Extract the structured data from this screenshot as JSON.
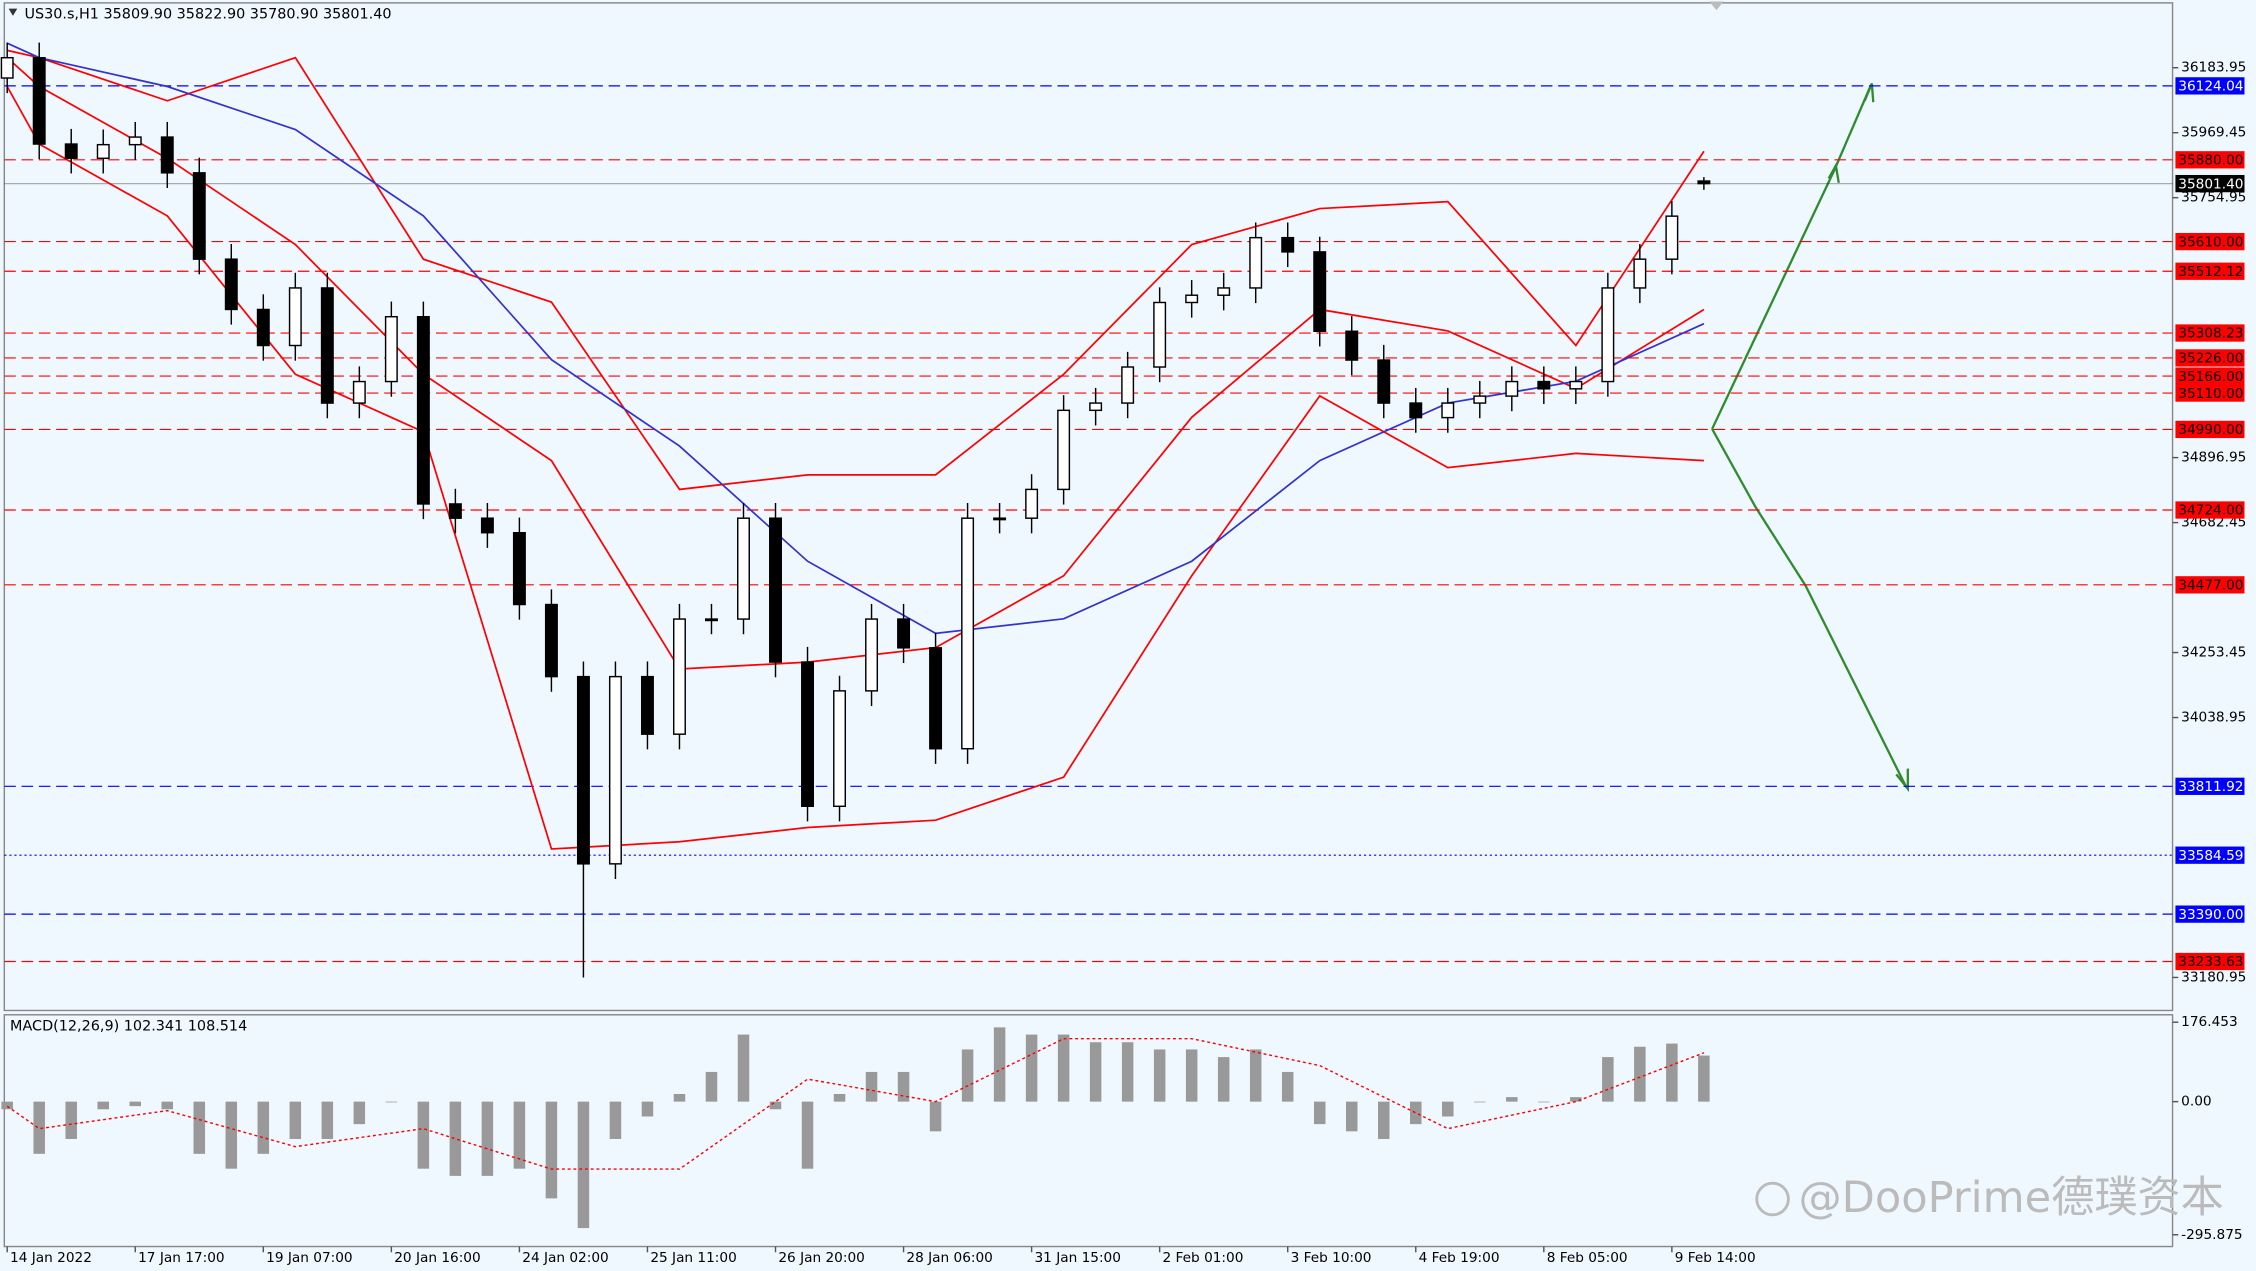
{
  "chart_data": [
    {
      "type": "candlestick",
      "title": "US30.s,H1 35809.90 35822.90 35780.90 35801.40",
      "color": "#000000",
      "xlim": [
        -0.09,
        67.64
      ],
      "xticks": [
        {
          "value": 0,
          "label": "14 Jan 2022"
        },
        {
          "value": 4,
          "label": "17 Jan 17:00"
        },
        {
          "value": 8,
          "label": "19 Jan 07:00"
        },
        {
          "value": 12,
          "label": "20 Jan 16:00"
        },
        {
          "value": 16,
          "label": "24 Jan 02:00"
        },
        {
          "value": 20,
          "label": "25 Jan 11:00"
        },
        {
          "value": 24,
          "label": "26 Jan 20:00"
        },
        {
          "value": 28,
          "label": "28 Jan 06:00"
        },
        {
          "value": 32,
          "label": "31 Jan 15:00"
        },
        {
          "value": 36,
          "label": "2 Feb 01:00"
        },
        {
          "value": 40,
          "label": "3 Feb 10:00"
        },
        {
          "value": 44,
          "label": "4 Feb 19:00"
        },
        {
          "value": 48,
          "label": "8 Feb 05:00"
        },
        {
          "value": 52,
          "label": "9 Feb 14:00"
        }
      ],
      "ylim": [
        33072,
        36398
      ],
      "yticks": [
        36183.95,
        35969.45,
        35754.95,
        34896.95,
        34682.45,
        34253.45,
        34038.95,
        33180.95
      ],
      "x": [
        0,
        1,
        2,
        3,
        4,
        5,
        6,
        7,
        8,
        9,
        10,
        11,
        12,
        13,
        14,
        15,
        16,
        17,
        18,
        19,
        20,
        21,
        22,
        23,
        24,
        25,
        26,
        27,
        28,
        29,
        30,
        31,
        32,
        33,
        34,
        35,
        36,
        37,
        38,
        39,
        40,
        41,
        42,
        43,
        44,
        45,
        46,
        47,
        48,
        49,
        50,
        51,
        52,
        53
      ],
      "open": [
        36150,
        36217,
        35932,
        35885,
        35930,
        35955,
        35837,
        35552,
        35386,
        35267,
        35457,
        35077,
        35148,
        35362,
        34744,
        34697,
        34649,
        34412,
        34174,
        33556,
        34174,
        33984,
        34364,
        34364,
        34697,
        34222,
        33746,
        34127,
        34364,
        34269,
        33936,
        34697,
        34697,
        34792,
        35053,
        35077,
        35196,
        35409,
        35433,
        35457,
        35623,
        35576,
        35314,
        35219,
        35077,
        35029,
        35077,
        35100,
        35148,
        35124,
        35148,
        35457,
        35552,
        35809.9
      ],
      "high": [
        36267,
        36267,
        35982,
        35980,
        36005,
        36005,
        35887,
        35602,
        35436,
        35507,
        35507,
        35198,
        35412,
        35412,
        34794,
        34747,
        34699,
        34462,
        34224,
        34224,
        34224,
        34414,
        34414,
        34747,
        34747,
        34272,
        34177,
        34414,
        34414,
        34319,
        34747,
        34747,
        34842,
        35103,
        35127,
        35246,
        35459,
        35483,
        35507,
        35673,
        35673,
        35626,
        35364,
        35269,
        35127,
        35127,
        35150,
        35198,
        35198,
        35198,
        35507,
        35602,
        35744,
        35822.9
      ],
      "low": [
        36100,
        35882,
        35835,
        35835,
        35880,
        35787,
        35502,
        35336,
        35217,
        35217,
        35027,
        35027,
        35098,
        34694,
        34647,
        34599,
        34362,
        34124,
        33181,
        33506,
        33934,
        33934,
        34314,
        34314,
        34172,
        33696,
        33696,
        34077,
        34219,
        33886,
        33886,
        34647,
        34647,
        34742,
        35003,
        35027,
        35146,
        35359,
        35383,
        35407,
        35526,
        35264,
        35169,
        35027,
        34979,
        34979,
        35027,
        35050,
        35074,
        35074,
        35098,
        35407,
        35502,
        35780.9
      ],
      "close": [
        36217,
        35932,
        35885,
        35930,
        35955,
        35837,
        35552,
        35386,
        35267,
        35457,
        35077,
        35148,
        35362,
        34744,
        34697,
        34649,
        34412,
        34174,
        33556,
        34174,
        33984,
        34364,
        34364,
        34697,
        34222,
        33746,
        34127,
        34364,
        34269,
        33936,
        34697,
        34697,
        34792,
        35053,
        35077,
        35196,
        35409,
        35433,
        35457,
        35623,
        35576,
        35314,
        35219,
        35077,
        35029,
        35077,
        35100,
        35148,
        35124,
        35148,
        35457,
        35552,
        35694,
        35801.4
      ],
      "overlays": [
        {
          "color": "#ff0000",
          "x": [
            0,
            1,
            5,
            9,
            13,
            17,
            21,
            25,
            29,
            33,
            37,
            41,
            45,
            49,
            53
          ],
          "values": [
            36241,
            36217,
            36075,
            36217,
            35552,
            35410,
            34792,
            34840,
            34840,
            35172,
            35600,
            35719,
            35742,
            35267,
            35908
          ]
        },
        {
          "color": "#ff0000",
          "x": [
            0,
            1,
            5,
            9,
            13,
            17,
            21,
            25,
            29,
            33,
            37,
            41,
            45,
            49,
            53
          ],
          "values": [
            36217,
            36122,
            35885,
            35600,
            35172,
            34887,
            34199,
            34222,
            34270,
            34507,
            35030,
            35386,
            35315,
            35125,
            35386
          ]
        },
        {
          "color": "#ff0000",
          "x": [
            0,
            1,
            5,
            9,
            13,
            17,
            21,
            25,
            29,
            33,
            37,
            41,
            45,
            49,
            53
          ],
          "values": [
            36122,
            35932,
            35695,
            35172,
            34982,
            33605,
            33629,
            33676,
            33700,
            33842,
            34507,
            35101,
            34864,
            34911,
            34887
          ]
        },
        {
          "color": "#3333cc",
          "x": [
            0,
            1,
            5,
            9,
            13,
            17,
            21,
            25,
            29,
            33,
            37,
            41,
            45,
            49,
            53
          ],
          "values": [
            36265,
            36217,
            36122,
            35980,
            35695,
            35220,
            34935,
            34555,
            34317,
            34365,
            34555,
            34887,
            35077,
            35149,
            35339
          ]
        }
      ],
      "levels": [
        {
          "value": 36124.04,
          "label": "36124.04",
          "color": "#0000ff",
          "style": "dash"
        },
        {
          "value": 35880,
          "label": "35880.00",
          "color": "#ff0000",
          "style": "dash"
        },
        {
          "value": 35801.4,
          "label": "35801.40",
          "color": "#000000",
          "style": "solid"
        },
        {
          "value": 35610,
          "label": "35610.00",
          "color": "#ff0000",
          "style": "dash"
        },
        {
          "value": 35512.12,
          "label": "35512.12",
          "color": "#ff0000",
          "style": "dash"
        },
        {
          "value": 35308.23,
          "label": "35308.23",
          "color": "#ff0000",
          "style": "dash"
        },
        {
          "value": 35226,
          "label": "35226.00",
          "color": "#ff0000",
          "style": "dash"
        },
        {
          "value": 35166,
          "label": "35166.00",
          "color": "#ff0000",
          "style": "dash"
        },
        {
          "value": 35110,
          "label": "35110.00",
          "color": "#ff0000",
          "style": "dash"
        },
        {
          "value": 34990,
          "label": "34990.00",
          "color": "#ff0000",
          "style": "dash"
        },
        {
          "value": 34724,
          "label": "34724.00",
          "color": "#ff0000",
          "style": "dash"
        },
        {
          "value": 34477,
          "label": "34477.00",
          "color": "#ff0000",
          "style": "dash"
        },
        {
          "value": 33811.92,
          "label": "33811.92",
          "color": "#0000ff",
          "style": "dash"
        },
        {
          "value": 33584.59,
          "label": "33584.59",
          "color": "#0000ff",
          "style": "dot"
        },
        {
          "value": 33390,
          "label": "33390.00",
          "color": "#0000ff",
          "style": "dash"
        },
        {
          "value": 33233.63,
          "label": "33233.63",
          "color": "#ff0000",
          "style": "dash"
        }
      ]
    },
    {
      "type": "macd",
      "title": "MACD(12,26,9) 102.341 108.514",
      "color": "#999999",
      "signal_color": "#ff0000",
      "ylim": [
        -322,
        193
      ],
      "yticks": [
        176.453,
        {
          "value": 0,
          "label": "0.00"
        },
        -295.875
      ],
      "x": [
        0,
        1,
        2,
        3,
        4,
        5,
        6,
        7,
        8,
        9,
        10,
        11,
        12,
        13,
        14,
        15,
        16,
        17,
        18,
        19,
        20,
        21,
        22,
        23,
        24,
        25,
        26,
        27,
        28,
        29,
        30,
        31,
        32,
        33,
        34,
        35,
        36,
        37,
        38,
        39,
        40,
        41,
        42,
        43,
        44,
        45,
        46,
        47,
        48,
        49,
        50,
        51,
        52,
        53
      ],
      "values": [
        -17,
        -116,
        -83,
        -17,
        -10,
        -17,
        -116,
        -149,
        -116,
        -83,
        -83,
        -50,
        0,
        -149,
        -165,
        -165,
        -149,
        -215,
        -281,
        -83,
        -33,
        17,
        66,
        149,
        -17,
        -149,
        17,
        66,
        66,
        -66,
        116,
        165,
        149,
        149,
        132,
        132,
        116,
        116,
        99,
        116,
        66,
        -50,
        -66,
        -83,
        -50,
        -33,
        0,
        10,
        0,
        10,
        99,
        122,
        129,
        102.341
      ],
      "signal_x": [
        0,
        1,
        5,
        9,
        13,
        17,
        21,
        25,
        29,
        33,
        37,
        41,
        45,
        49,
        53
      ],
      "signal": [
        -10,
        -60,
        -20,
        -100,
        -60,
        -150,
        -150,
        50,
        0,
        140,
        140,
        80,
        -60,
        0,
        108.514
      ]
    }
  ],
  "watermark": "@DooPrime德璞资本"
}
